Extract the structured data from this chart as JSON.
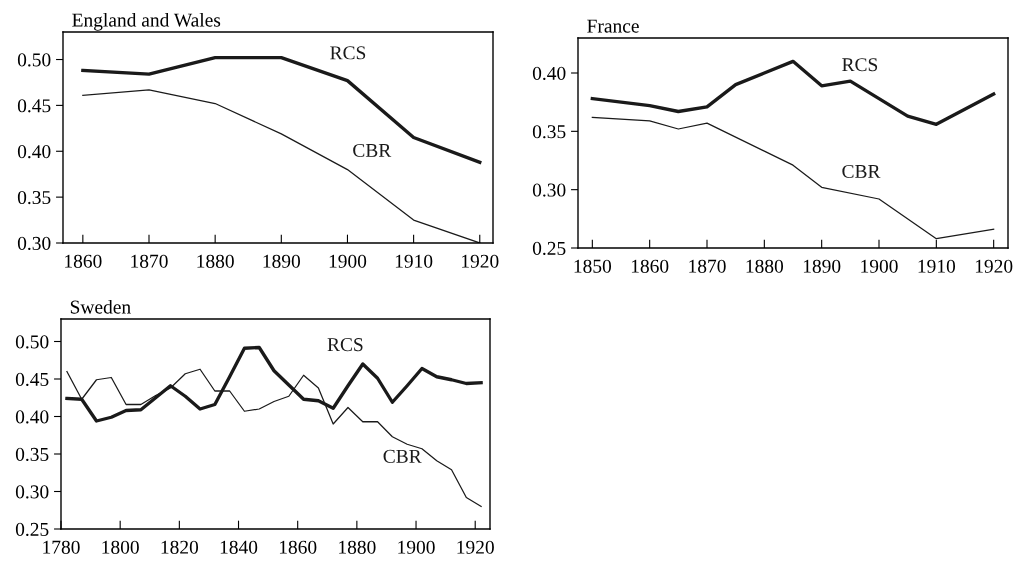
{
  "chart_data": [
    {
      "type": "line",
      "title": "England and Wales",
      "xlim": [
        1857,
        1922
      ],
      "xticks": [
        1860,
        1870,
        1880,
        1890,
        1900,
        1910,
        1920
      ],
      "ylim": [
        0.3,
        0.53
      ],
      "yticks": [
        {
          "value": 0.3,
          "label": "0.30"
        },
        {
          "value": 0.35,
          "label": "0.35"
        },
        {
          "value": 0.4,
          "label": "0.40"
        },
        {
          "value": 0.45,
          "label": "0.45"
        },
        {
          "value": 0.5,
          "label": "0.50"
        }
      ],
      "grid": false,
      "legend": false,
      "marker": "none",
      "line_style": "solid",
      "x": [
        1860,
        1870,
        1880,
        1890,
        1900,
        1910,
        1920
      ],
      "series": [
        {
          "name": "RCS",
          "color": "#1a1a1a",
          "values": [
            0.488,
            0.484,
            0.502,
            0.502,
            0.477,
            0.415,
            0.388
          ]
        },
        {
          "name": "CBR",
          "color": "#1a1a1a",
          "values": [
            0.461,
            0.467,
            0.452,
            0.419,
            0.38,
            0.325,
            0.3
          ]
        }
      ]
    },
    {
      "type": "line",
      "title": "France",
      "xlim": [
        1847.5,
        1922.5
      ],
      "xticks": [
        1850,
        1860,
        1870,
        1880,
        1890,
        1900,
        1910,
        1920
      ],
      "ylim": [
        0.25,
        0.43
      ],
      "yticks": [
        {
          "value": 0.25,
          "label": "0.25"
        },
        {
          "value": 0.3,
          "label": "0.30"
        },
        {
          "value": 0.35,
          "label": "0.35"
        },
        {
          "value": 0.4,
          "label": "0.40"
        }
      ],
      "grid": false,
      "legend": false,
      "marker": "none",
      "line_style": "solid",
      "series": [
        {
          "name": "RCS",
          "color": "#1a1a1a",
          "x": [
            1850,
            1860,
            1865,
            1870,
            1875,
            1880,
            1885,
            1890,
            1895,
            1900,
            1905,
            1910,
            1920
          ],
          "values": [
            0.378,
            0.372,
            0.367,
            0.371,
            0.39,
            0.4,
            0.41,
            0.389,
            0.393,
            0.378,
            0.363,
            0.356,
            0.382
          ]
        },
        {
          "name": "CBR",
          "color": "#1a1a1a",
          "x": [
            1850,
            1860,
            1865,
            1870,
            1880,
            1885,
            1890,
            1900,
            1910,
            1920
          ],
          "values": [
            0.362,
            0.359,
            0.352,
            0.357,
            0.333,
            0.321,
            0.302,
            0.292,
            0.258,
            0.266
          ]
        }
      ]
    },
    {
      "type": "line",
      "title": "Sweden",
      "xlim": [
        1780,
        1925
      ],
      "xticks": [
        1780,
        1800,
        1820,
        1840,
        1860,
        1880,
        1900,
        1920
      ],
      "ylim": [
        0.25,
        0.53
      ],
      "yticks": [
        {
          "value": 0.25,
          "label": "0.25"
        },
        {
          "value": 0.3,
          "label": "0.30"
        },
        {
          "value": 0.35,
          "label": "0.35"
        },
        {
          "value": 0.4,
          "label": "0.40"
        },
        {
          "value": 0.45,
          "label": "0.45"
        },
        {
          "value": 0.5,
          "label": "0.50"
        }
      ],
      "grid": false,
      "legend": false,
      "marker": "none",
      "line_style": "solid",
      "x": [
        1782,
        1787,
        1792,
        1797,
        1802,
        1807,
        1812,
        1817,
        1822,
        1827,
        1832,
        1837,
        1842,
        1847,
        1852,
        1857,
        1862,
        1867,
        1872,
        1877,
        1882,
        1887,
        1892,
        1897,
        1902,
        1907,
        1912,
        1917,
        1922
      ],
      "series": [
        {
          "name": "RCS",
          "color": "#1a1a1a",
          "values": [
            0.424,
            0.423,
            0.394,
            0.399,
            0.408,
            0.409,
            0.425,
            0.441,
            0.427,
            0.41,
            0.416,
            0.453,
            0.491,
            0.492,
            0.461,
            0.442,
            0.423,
            0.421,
            0.411,
            0.441,
            0.47,
            0.451,
            0.419,
            0.441,
            0.464,
            0.453,
            0.449,
            0.444,
            0.445
          ]
        },
        {
          "name": "CBR",
          "color": "#1a1a1a",
          "values": [
            0.46,
            0.423,
            0.449,
            0.452,
            0.416,
            0.416,
            0.428,
            0.438,
            0.457,
            0.463,
            0.434,
            0.434,
            0.407,
            0.41,
            0.42,
            0.427,
            0.455,
            0.438,
            0.39,
            0.412,
            0.393,
            0.393,
            0.373,
            0.363,
            0.357,
            0.341,
            0.329,
            0.292,
            0.28
          ]
        }
      ]
    }
  ]
}
